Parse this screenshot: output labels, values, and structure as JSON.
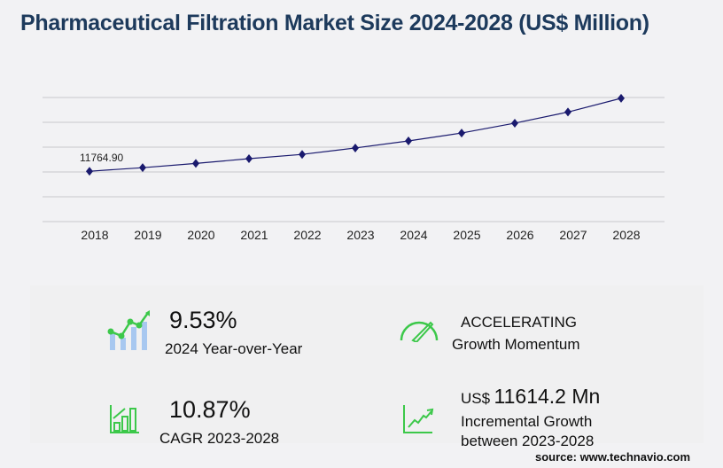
{
  "title": "Pharmaceutical Filtration Market Size 2024-2028 (US$ Million)",
  "chart_data": {
    "type": "line",
    "title": "Pharmaceutical Filtration Market Size 2024-2028 (US$ Million)",
    "categories": [
      "2018",
      "2019",
      "2020",
      "2021",
      "2022",
      "2023",
      "2024",
      "2025",
      "2026",
      "2027",
      "2028"
    ],
    "values": [
      11764.9,
      12600,
      13600,
      14700,
      15700,
      17200,
      18850,
      20700,
      23000,
      25600,
      28820
    ],
    "data_labels": [
      {
        "category": "2018",
        "text": "11764.90"
      }
    ],
    "ylim": [
      0,
      29000
    ],
    "grid": true,
    "line_color": "#1a1a6e"
  },
  "stats": {
    "yoy_value": "9.53%",
    "yoy_label": "2024 Year-over-Year",
    "momentum_value": "ACCELERATING",
    "momentum_label": "Growth Momentum",
    "cagr_value": "10.87%",
    "cagr_label": "CAGR 2023-2028",
    "incr_prefix": "US$",
    "incr_value": "11614.2 Mn",
    "incr_label_1": "Incremental Growth",
    "incr_label_2": "between 2023-2028"
  },
  "colors": {
    "accent_green": "#3cc84a",
    "bar_blue": "#a8c8f0",
    "title": "#1d3a5c"
  },
  "source": "source: www.technavio.com"
}
